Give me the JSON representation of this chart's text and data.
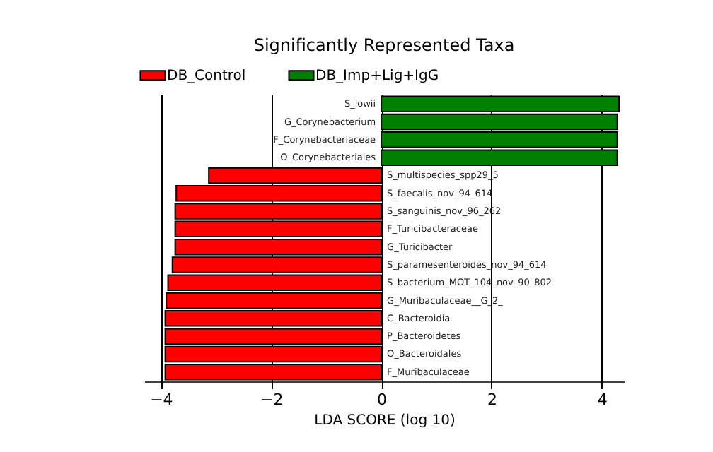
{
  "chart_data": {
    "type": "bar",
    "orientation": "horizontal",
    "title": "Significantly Represented Taxa",
    "xlabel": "LDA SCORE (log 10)",
    "categories": [
      "S_lowii",
      "G_Corynebacterium",
      "F_Corynebacteriaceae",
      "O_Corynebacteriales",
      "S_multispecies_spp29_5",
      "S_faecalis_nov_94_614",
      "S_sanguinis_nov_96_262",
      "F_Turicibacteraceae",
      "G_Turicibacter",
      "S_paramesenteroides_nov_94_614",
      "S_bacterium_MOT_104_nov_90_802",
      "G_Muribaculaceae__G_2_",
      "C_Bacteroidia",
      "P_Bacteroidetes",
      "O_Bacteroidales",
      "F_Muribaculaceae"
    ],
    "series": [
      {
        "name": "DB_Control",
        "color": "#ff0000",
        "values": [
          null,
          null,
          null,
          null,
          -3.13,
          -3.72,
          -3.74,
          -3.74,
          -3.74,
          -3.79,
          -3.87,
          -3.9,
          -3.92,
          -3.92,
          -3.92,
          -3.92
        ]
      },
      {
        "name": "DB_Imp+Lig+IgG",
        "color": "#008000",
        "values": [
          4.31,
          4.28,
          4.28,
          4.28,
          null,
          null,
          null,
          null,
          null,
          null,
          null,
          null,
          null,
          null,
          null,
          null
        ]
      }
    ],
    "xlim": [
      -4.3,
      4.4
    ],
    "xticks": [
      -4,
      -2,
      0,
      2,
      4
    ],
    "grid": "x",
    "legend": "top left"
  }
}
